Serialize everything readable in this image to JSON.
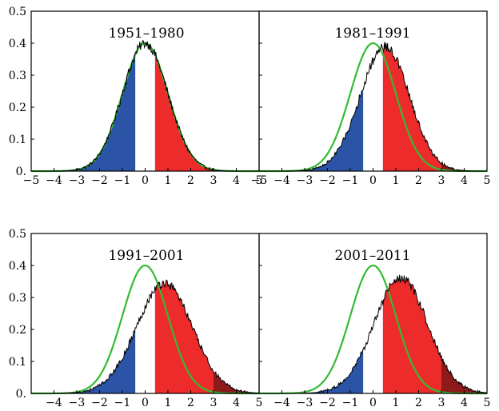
{
  "chart_data": [
    {
      "type": "area",
      "title": "1951–1980",
      "xlim": [
        -5,
        5
      ],
      "ylim": [
        0,
        0.5
      ],
      "x_ticks": [
        "−5",
        "−4",
        "−3",
        "−2",
        "−1",
        "0",
        "1",
        "2",
        "3",
        "4",
        "5"
      ],
      "y_ticks": [
        "0.",
        "0.1",
        "0.2",
        "0.3",
        "0.4",
        "0.5"
      ],
      "reference_curve": {
        "kind": "normal",
        "mean": 0,
        "sd": 1,
        "peak": 0.4,
        "color": "#33bb33"
      },
      "distribution": {
        "mean": 0.0,
        "sd": 1.0,
        "skew": 0,
        "peak_y": 0.4
      },
      "shading": [
        {
          "name": "cold",
          "from": -5,
          "to": -0.43,
          "color": "#2b54a7"
        },
        {
          "name": "neutral",
          "from": -0.43,
          "to": 0.43,
          "color": "#ffffff"
        },
        {
          "name": "hot",
          "from": 0.43,
          "to": 3,
          "color": "#ee2b2b"
        },
        {
          "name": "extremely-hot",
          "from": 3,
          "to": 5,
          "color": "#8e1a1a"
        }
      ]
    },
    {
      "type": "area",
      "title": "1981–1991",
      "xlim": [
        -5,
        5
      ],
      "ylim": [
        0,
        0.5
      ],
      "x_ticks": [
        "−5",
        "−4",
        "−3",
        "−2",
        "−1",
        "0",
        "1",
        "2",
        "3",
        "4",
        "5"
      ],
      "y_ticks": [],
      "reference_curve": {
        "kind": "normal",
        "mean": 0,
        "sd": 1,
        "peak": 0.4,
        "color": "#33bb33"
      },
      "distribution": {
        "mean": 0.3,
        "sd": 1.1,
        "skew": 0.5,
        "peak_y": 0.39
      },
      "shading": [
        {
          "name": "cold",
          "from": -5,
          "to": -0.43,
          "color": "#2b54a7"
        },
        {
          "name": "neutral",
          "from": -0.43,
          "to": 0.43,
          "color": "#ffffff"
        },
        {
          "name": "hot",
          "from": 0.43,
          "to": 3,
          "color": "#ee2b2b"
        },
        {
          "name": "extremely-hot",
          "from": 3,
          "to": 5,
          "color": "#8e1a1a"
        }
      ]
    },
    {
      "type": "area",
      "title": "1991–2001",
      "xlim": [
        -5,
        5
      ],
      "ylim": [
        0,
        0.5
      ],
      "x_ticks": [
        "",
        "−4",
        "−3",
        "−2",
        "−1",
        "0",
        "1",
        "2",
        "3",
        "4",
        "5"
      ],
      "y_ticks": [
        "0.",
        "0.1",
        "0.2",
        "0.3",
        "0.4",
        "0.5"
      ],
      "reference_curve": {
        "kind": "normal",
        "mean": 0,
        "sd": 1,
        "peak": 0.4,
        "color": "#33bb33"
      },
      "distribution": {
        "mean": 0.6,
        "sd": 1.25,
        "skew": 0.5,
        "peak_y": 0.345
      },
      "shading": [
        {
          "name": "cold",
          "from": -5,
          "to": -0.43,
          "color": "#2b54a7"
        },
        {
          "name": "neutral",
          "from": -0.43,
          "to": 0.43,
          "color": "#ffffff"
        },
        {
          "name": "hot",
          "from": 0.43,
          "to": 3,
          "color": "#ee2b2b"
        },
        {
          "name": "extremely-hot",
          "from": 3,
          "to": 5,
          "color": "#8e1a1a"
        }
      ]
    },
    {
      "type": "area",
      "title": "2001–2011",
      "xlim": [
        -5,
        5
      ],
      "ylim": [
        0,
        0.5
      ],
      "x_ticks": [
        "",
        "−4",
        "−3",
        "−2",
        "−1",
        "0",
        "1",
        "2",
        "3",
        "4",
        "5"
      ],
      "y_ticks": [],
      "reference_curve": {
        "kind": "normal",
        "mean": 0,
        "sd": 1,
        "peak": 0.4,
        "color": "#33bb33"
      },
      "distribution": {
        "mean": 1.0,
        "sd": 1.2,
        "skew": 0.45,
        "peak_y": 0.36
      },
      "shading": [
        {
          "name": "cold",
          "from": -5,
          "to": -0.43,
          "color": "#2b54a7"
        },
        {
          "name": "neutral",
          "from": -0.43,
          "to": 0.43,
          "color": "#ffffff"
        },
        {
          "name": "hot",
          "from": 0.43,
          "to": 3,
          "color": "#ee2b2b"
        },
        {
          "name": "extremely-hot",
          "from": 3,
          "to": 5,
          "color": "#8e1a1a"
        }
      ]
    }
  ]
}
